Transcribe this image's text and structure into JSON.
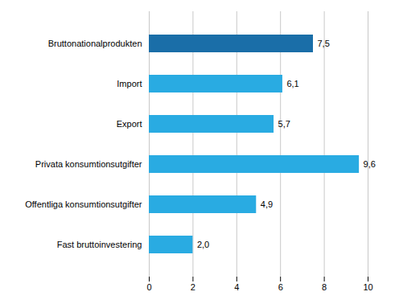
{
  "chart_data": {
    "type": "bar",
    "orientation": "horizontal",
    "categories": [
      "Fast bruttoinvestering",
      "Offentliga konsumtionsutgifter",
      "Privata konsumtionsutgifter",
      "Export",
      "Import",
      "Bruttonationalprodukten"
    ],
    "values": [
      2.0,
      4.9,
      9.6,
      5.7,
      6.1,
      7.5
    ],
    "value_labels": [
      "2,0",
      "4,9",
      "9,6",
      "5,7",
      "6,1",
      "7,5"
    ],
    "colors": [
      "#29abe2",
      "#29abe2",
      "#29abe2",
      "#29abe2",
      "#29abe2",
      "#1a6ea8"
    ],
    "xlim": [
      0,
      10
    ],
    "xticks": [
      0,
      2,
      4,
      6,
      8,
      10
    ],
    "grid": true,
    "data_labels": true
  }
}
